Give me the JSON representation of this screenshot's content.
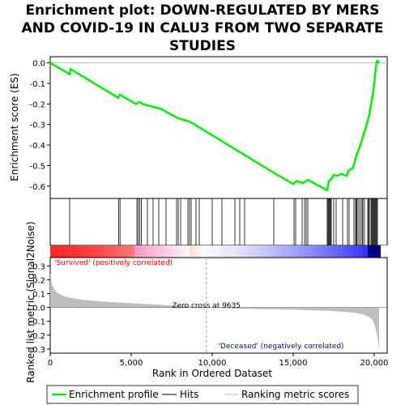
{
  "title_lines": [
    "Enrichment plot: DOWN-REGULATED BY MERS",
    "AND COVID-19 IN CALU3 FROM TWO SEPARATE",
    "STUDIES"
  ],
  "chart_data": {
    "type": "line",
    "title": "Enrichment plot: DOWN-REGULATED BY MERS AND COVID-19 IN CALU3 FROM TWO SEPARATE STUDIES",
    "xlabel": "Rank in Ordered Dataset",
    "es_ylabel": "Enrichment score (ES)",
    "metric_ylabel": "Ranked list metric (Signal2Noise)",
    "xlim": [
      0,
      20800
    ],
    "es_ylim": [
      -0.66,
      0.03
    ],
    "metric_ylim": [
      -0.33,
      0.36
    ],
    "x_ticks": [
      0,
      5000,
      10000,
      15000,
      20000
    ],
    "x_tick_labels": [
      "0",
      "5,000",
      "10,000",
      "15,000",
      "20,000"
    ],
    "es_ticks": [
      0.0,
      -0.1,
      -0.2,
      -0.3,
      -0.4,
      -0.5,
      -0.6
    ],
    "es_tick_labels": [
      "0.0",
      "-0.1",
      "-0.2",
      "-0.3",
      "-0.4",
      "-0.5",
      "-0.6"
    ],
    "metric_ticks": [
      0.3,
      0.2,
      0.1,
      0.0,
      -0.1,
      -0.2,
      -0.3
    ],
    "metric_tick_labels": [
      "0.3",
      "0.2",
      "0.1",
      "0.0",
      "-0.1",
      "-0.2",
      "-0.3"
    ],
    "enrichment_profile": {
      "x": [
        0,
        1200,
        1250,
        4200,
        4300,
        5300,
        5500,
        5700,
        6900,
        7200,
        7900,
        8600,
        13800,
        15000,
        15200,
        15600,
        15900,
        17100,
        17200,
        17400,
        17500,
        17700,
        18000,
        18300,
        18400,
        18700,
        18900,
        19100,
        19300,
        19500,
        19700,
        19800,
        19900,
        20000,
        20050,
        20100,
        20150,
        20200,
        20300
      ],
      "y": [
        0.0,
        -0.055,
        -0.03,
        -0.17,
        -0.155,
        -0.2,
        -0.19,
        -0.2,
        -0.225,
        -0.24,
        -0.27,
        -0.285,
        -0.535,
        -0.59,
        -0.575,
        -0.585,
        -0.57,
        -0.62,
        -0.575,
        -0.56,
        -0.545,
        -0.55,
        -0.54,
        -0.55,
        -0.525,
        -0.51,
        -0.45,
        -0.41,
        -0.36,
        -0.31,
        -0.25,
        -0.2,
        -0.16,
        -0.1,
        -0.06,
        -0.02,
        0.005,
        0.01,
        0.0
      ]
    },
    "hits": [
      1200,
      4230,
      4310,
      5350,
      5420,
      5520,
      5620,
      6000,
      6350,
      6700,
      7150,
      7800,
      7900,
      8050,
      8500,
      8600,
      8700,
      9000,
      9200,
      10000,
      10600,
      11400,
      11700,
      12000,
      13800,
      15050,
      15150,
      15550,
      15700,
      15800,
      15900,
      17100,
      17150,
      17200,
      17250,
      17300,
      17350,
      17500,
      17650,
      18050,
      18350,
      18450,
      18750,
      18850,
      18900,
      18950,
      19050,
      19150,
      19250,
      19300,
      19400,
      19600,
      19650,
      19700,
      19800,
      19850,
      19900,
      19950,
      20000,
      20050,
      20100,
      20150,
      20200
    ],
    "ranking_metric": {
      "x": [
        0,
        100,
        300,
        600,
        1000,
        2000,
        3000,
        5000,
        7000,
        8500,
        9635,
        11000,
        13000,
        15000,
        17000,
        18000,
        18800,
        19300,
        19700,
        19900,
        20000,
        20100,
        20200,
        20300
      ],
      "y": [
        0.25,
        0.17,
        0.12,
        0.095,
        0.075,
        0.055,
        0.045,
        0.03,
        0.018,
        0.008,
        0.0,
        -0.006,
        -0.012,
        -0.016,
        -0.024,
        -0.03,
        -0.038,
        -0.05,
        -0.07,
        -0.09,
        -0.12,
        -0.16,
        -0.22,
        -0.3
      ]
    },
    "zero_cross": 9635,
    "zero_cross_label": "Zero cross at 9635",
    "positive_label": "'Survived' (positively correlated)",
    "negative_label": "'Deceased' (negatively correlated)",
    "legend": [
      "Enrichment profile",
      "Hits",
      "Ranking metric scores"
    ],
    "legend_position": "bottom",
    "colors": {
      "profile": "#00ee00",
      "hits": "#000000",
      "metric_fill": "#bebebe",
      "positive_text": "#ff0000",
      "negative_text": "#0000cc"
    }
  }
}
